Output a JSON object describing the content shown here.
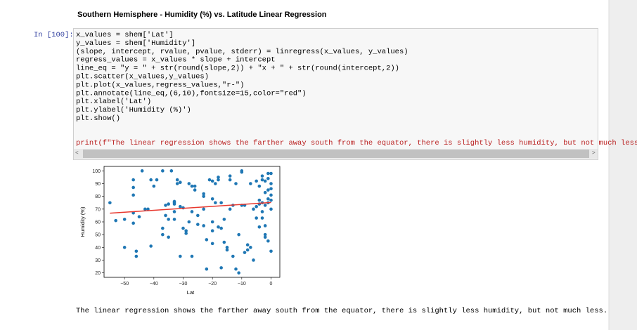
{
  "header": {
    "title": "Southern Hemisphere - Humidity (%) vs. Latitude Linear Regression"
  },
  "cell": {
    "prompt": "In [100]:",
    "lines": [
      "x_values = shem['Lat']",
      "y_values = shem['Humidity']",
      "(slope, intercept, rvalue, pvalue, stderr) = linregress(x_values, y_values)",
      "regress_values = x_values * slope + intercept",
      "line_eq = \"y = \" + str(round(slope,2)) + \"x + \" + str(round(intercept,2))",
      "plt.scatter(x_values,y_values)",
      "plt.plot(x_values,regress_values,\"r-\")",
      "plt.annotate(line_eq,(6,10),fontsize=15,color=\"red\")",
      "plt.xlabel('Lat')",
      "plt.ylabel('Humidity (%)')",
      "plt.show()"
    ],
    "print_line": "print(f\"The linear regression shows the farther away south from the equator, there is slightly less humidity, but not much less.\")"
  },
  "output_text": "The linear regression shows the farther away south from the equator, there is slightly less humidity, but not much less.",
  "chart_data": {
    "type": "scatter",
    "xlabel": "Lat",
    "ylabel": "Humidity (%)",
    "color": "#1f77b4",
    "x": [
      -55,
      -53,
      -50,
      -46,
      -46,
      -47,
      -47,
      -47,
      -47,
      -47,
      -44,
      -42,
      -43,
      -41,
      -40,
      -41,
      -39,
      -37,
      -37,
      -37,
      -36,
      -36,
      -35,
      -35,
      -34,
      -33,
      -33,
      -33,
      -33,
      -33,
      -32,
      -32,
      -31,
      -31,
      -30,
      -30,
      -29,
      -29,
      -28,
      -28,
      -27,
      -27,
      -26,
      -26,
      -25,
      -23,
      -23,
      -23,
      -23,
      -22,
      -21,
      -20,
      -20,
      -20,
      -20,
      -19,
      -19,
      -18,
      -18,
      -17,
      -17,
      -17,
      -16,
      -16,
      -15,
      -15,
      -14,
      -14,
      -14,
      -13,
      -13,
      -12,
      -12,
      -11,
      -11,
      -10,
      -10,
      -10,
      -9,
      -9,
      -8,
      -8,
      -7,
      -7,
      -6,
      -5,
      -5,
      -4,
      -4,
      -4,
      -3,
      -3,
      -3,
      -3,
      -2,
      -2,
      -2,
      -2,
      -1,
      -1,
      -1,
      -1,
      -1,
      0,
      0,
      0,
      0,
      0,
      0,
      0,
      -2,
      -4,
      -5,
      -6,
      -3,
      -1,
      -2,
      -18,
      -25,
      -27,
      -35,
      -45,
      -50,
      -31,
      -22,
      -20
    ],
    "values": [
      75,
      61,
      40,
      33,
      37,
      87,
      93,
      81,
      67,
      59,
      100,
      70,
      70,
      93,
      88,
      41,
      93,
      100,
      55,
      50,
      65,
      73,
      74,
      62,
      100,
      75,
      76,
      74,
      68,
      62,
      93,
      90,
      91,
      72,
      71,
      55,
      53,
      51,
      90,
      60,
      68,
      88,
      85,
      88,
      65,
      80,
      82,
      70,
      57,
      23,
      93,
      92,
      78,
      60,
      53,
      75,
      90,
      95,
      93,
      75,
      24,
      55,
      62,
      44,
      40,
      38,
      93,
      96,
      70,
      33,
      73,
      23,
      90,
      20,
      50,
      100,
      99,
      73,
      73,
      36,
      42,
      38,
      90,
      40,
      30,
      92,
      63,
      77,
      74,
      56,
      93,
      96,
      68,
      75,
      92,
      83,
      73,
      48,
      78,
      85,
      98,
      75,
      94,
      86,
      90,
      81,
      98,
      77,
      70,
      37,
      57,
      88,
      72,
      70,
      63,
      45,
      50,
      56,
      58,
      33,
      48,
      64,
      62,
      33,
      46,
      43
    ],
    "regression": {
      "x": [
        -55,
        0
      ],
      "values": [
        66.8,
        75.2
      ],
      "color": "#e8382e"
    },
    "xlim": [
      -57,
      3
    ],
    "ylim": [
      16.5,
      103.5
    ],
    "xticks": [
      {
        "value": -50,
        "label": "−50"
      },
      {
        "value": -40,
        "label": "−40"
      },
      {
        "value": -30,
        "label": "−30"
      },
      {
        "value": -20,
        "label": "−20"
      },
      {
        "value": -10,
        "label": "−10"
      },
      0
    ],
    "yticks": [
      20,
      30,
      40,
      50,
      60,
      70,
      80,
      90,
      100
    ]
  }
}
